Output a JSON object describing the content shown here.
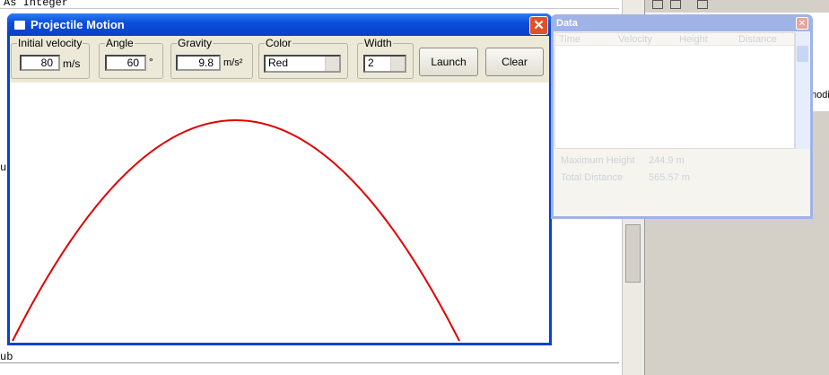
{
  "editor": {
    "lines": [
      "As Integer",
      "ub",
      "ub"
    ]
  },
  "side_panel": {
    "text": "modi"
  },
  "main_window": {
    "title": "Projectile Motion",
    "fields": [
      {
        "label": "Initial velocity",
        "value": "80",
        "unit": "m/s"
      },
      {
        "label": "Angle",
        "value": "60",
        "unit": "°"
      },
      {
        "label": "Gravity",
        "value": "9.8",
        "unit": "m/s²"
      },
      {
        "label": "Color",
        "value": "Red"
      },
      {
        "label": "Width",
        "value": "2"
      }
    ],
    "buttons": [
      "Launch",
      "Clear"
    ]
  },
  "data_window": {
    "title": "Data",
    "columns": [
      "Time",
      "Velocity",
      "Height",
      "Distance"
    ],
    "results": [
      {
        "label": "Maximum Height",
        "value": "244.9 m"
      },
      {
        "label": "Total Distance",
        "value": "565.57 m"
      }
    ]
  }
}
